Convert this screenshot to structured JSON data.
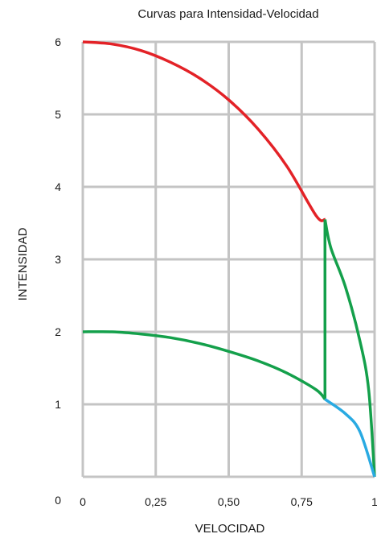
{
  "chart_data": {
    "type": "line",
    "title": "Curvas para Intensidad-Velocidad",
    "xlabel": "VELOCIDAD",
    "ylabel": "INTENSIDAD",
    "xlim": [
      0,
      1
    ],
    "ylim": [
      0,
      6
    ],
    "grid": true,
    "x_ticks": [
      "0",
      "0,25",
      "0,50",
      "0,75",
      "1"
    ],
    "y_ticks": [
      "0",
      "1",
      "2",
      "3",
      "4",
      "5",
      "6"
    ],
    "series": [
      {
        "color": "#e32227",
        "x": [
          0,
          0.1,
          0.2,
          0.3,
          0.4,
          0.5,
          0.6,
          0.7,
          0.8,
          0.83
        ],
        "y": [
          6.0,
          5.97,
          5.88,
          5.72,
          5.5,
          5.2,
          4.8,
          4.28,
          3.6,
          3.55
        ]
      },
      {
        "color": "#14a04b",
        "x": [
          0.83,
          0.85,
          0.9,
          0.95,
          0.98,
          1.0
        ],
        "y": [
          3.55,
          3.16,
          2.62,
          1.87,
          1.19,
          0.0
        ]
      },
      {
        "color": "#14a04b",
        "x": [
          0.83,
          0.83
        ],
        "y": [
          1.07,
          3.55
        ]
      },
      {
        "color": "#14a04b",
        "x": [
          0,
          0.1,
          0.2,
          0.3,
          0.4,
          0.5,
          0.6,
          0.7,
          0.8,
          0.83
        ],
        "y": [
          2.0,
          2.0,
          1.97,
          1.92,
          1.84,
          1.73,
          1.6,
          1.43,
          1.2,
          1.07
        ]
      },
      {
        "color": "#29aae2",
        "x": [
          0.83,
          0.9,
          0.95,
          1.0
        ],
        "y": [
          1.07,
          0.87,
          0.62,
          0.0
        ]
      }
    ]
  }
}
